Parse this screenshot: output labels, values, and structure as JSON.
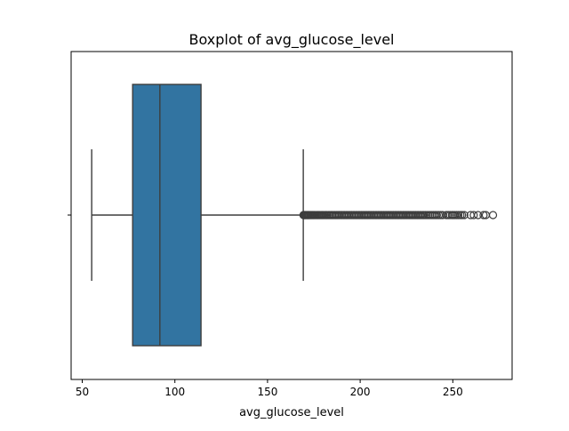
{
  "chart_data": {
    "type": "box",
    "title": "Boxplot of avg_glucose_level",
    "xlabel": "avg_glucose_level",
    "ylabel": "",
    "orientation": "horizontal",
    "xlim": [
      44,
      282
    ],
    "xticks": [
      50,
      100,
      150,
      200,
      250
    ],
    "grid": false,
    "box_color": "#3274a1",
    "line_color": "#3d3d3d",
    "stats": {
      "whisker_low": 55.1,
      "q1": 77.2,
      "median": 91.9,
      "q3": 114.1,
      "whisker_high": 169.3
    },
    "outliers": [
      169.4,
      169.6,
      169.9,
      170.2,
      170.5,
      170.9,
      171.3,
      171.7,
      172.0,
      172.4,
      172.9,
      173.3,
      173.8,
      174.3,
      174.8,
      175.3,
      175.9,
      176.5,
      177.1,
      177.7,
      178.3,
      178.9,
      179.5,
      180.1,
      180.8,
      181.5,
      182.1,
      182.8,
      183.5,
      184.2,
      184.9,
      185.6,
      186.4,
      187.1,
      187.9,
      188.6,
      189.4,
      190.1,
      190.9,
      191.6,
      192.4,
      193.1,
      193.9,
      194.7,
      195.4,
      196.2,
      196.9,
      197.7,
      198.4,
      199.2,
      199.9,
      200.7,
      201.4,
      202.2,
      202.9,
      203.7,
      204.4,
      205.2,
      205.9,
      206.7,
      207.4,
      208.2,
      208.9,
      209.7,
      210.4,
      211.2,
      211.9,
      212.7,
      213.4,
      214.2,
      214.9,
      215.7,
      216.4,
      217.2,
      217.9,
      218.7,
      219.4,
      220.2,
      220.9,
      221.7,
      222.4,
      223.2,
      223.9,
      224.7,
      225.4,
      226.2,
      226.9,
      227.7,
      228.4,
      229.2,
      229.9,
      230.7,
      231.4,
      232.2,
      232.9,
      233.7,
      234.4,
      235.2,
      236.0,
      236.9,
      237.8,
      238.7,
      239.6,
      240.5,
      241.4,
      242.4,
      243.4,
      244.5,
      246.5,
      247.5,
      248.5,
      249.5,
      250.2,
      251.0,
      252.0,
      253.0,
      254.1,
      255.0,
      256.2,
      259.6,
      261.3,
      263.6,
      266.6,
      267.8,
      271.7
    ]
  }
}
